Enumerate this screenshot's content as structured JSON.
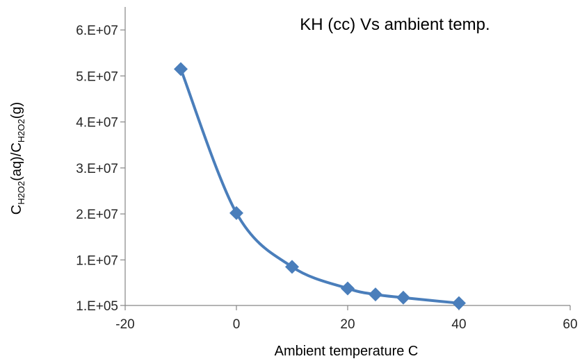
{
  "chart_data": {
    "type": "scatter",
    "title": "KH (cc) Vs ambient temp.",
    "xlabel": "Ambient temperature C",
    "ylabel": {
      "parts": [
        {
          "text": "C",
          "sub": false
        },
        {
          "text": "H2O2",
          "sub": true
        },
        {
          "text": "(aq)/C",
          "sub": false
        },
        {
          "text": "H2O2",
          "sub": true
        },
        {
          "text": "(g)",
          "sub": false
        }
      ]
    },
    "xlim": [
      -20,
      60
    ],
    "ylim": [
      100000,
      65000000
    ],
    "x_ticks": [
      -20,
      0,
      20,
      40,
      60
    ],
    "x_tick_labels": [
      "-20",
      "0",
      "20",
      "40",
      "60"
    ],
    "y_ticks": [
      100000,
      10000000,
      20000000,
      30000000,
      40000000,
      50000000,
      60000000
    ],
    "y_tick_labels": [
      "1.E+05",
      "1.E+07",
      "2.E+07",
      "3.E+07",
      "4.E+07",
      "5.E+07",
      "6.E+07"
    ],
    "grid": false,
    "smooth_line": true,
    "marker": "diamond",
    "series": [
      {
        "x": [
          -10,
          0,
          10,
          20,
          25,
          30,
          40
        ],
        "y": [
          51500000,
          20200000,
          8500000,
          3800000,
          2500000,
          1800000,
          600000
        ],
        "color": "#4A7EBB"
      }
    ]
  }
}
